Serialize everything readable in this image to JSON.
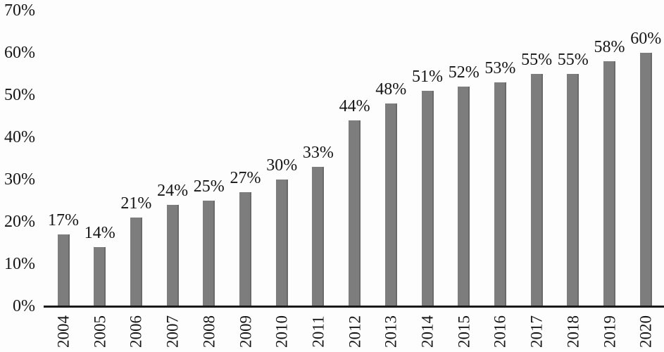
{
  "chart_data": {
    "type": "bar",
    "title": "",
    "xlabel": "",
    "ylabel": "",
    "categories": [
      "2004",
      "2005",
      "2006",
      "2007",
      "2008",
      "2009",
      "2010",
      "2011",
      "2012",
      "2013",
      "2014",
      "2015",
      "2016",
      "2017",
      "2018",
      "2019",
      "2020"
    ],
    "values": [
      17,
      14,
      21,
      24,
      25,
      27,
      30,
      33,
      44,
      48,
      51,
      52,
      53,
      55,
      55,
      58,
      60
    ],
    "labels": [
      "17%",
      "14%",
      "21%",
      "24%",
      "25%",
      "27%",
      "30%",
      "33%",
      "44%",
      "48%",
      "51%",
      "52%",
      "53%",
      "55%",
      "55%",
      "58%",
      "60%"
    ],
    "ylim": [
      0,
      70
    ],
    "yticks": [
      70,
      60,
      50,
      40,
      30,
      20,
      10,
      0
    ],
    "ytick_labels": [
      "70%",
      "60%",
      "50%",
      "40%",
      "30%",
      "20%",
      "10%",
      "0%"
    ],
    "grid": false,
    "legend_position": "none",
    "bar_color": "#7d7d7d",
    "axis_color": "#1a1a1a",
    "background_color": "#fdfdfd",
    "text_color": "#151515"
  }
}
